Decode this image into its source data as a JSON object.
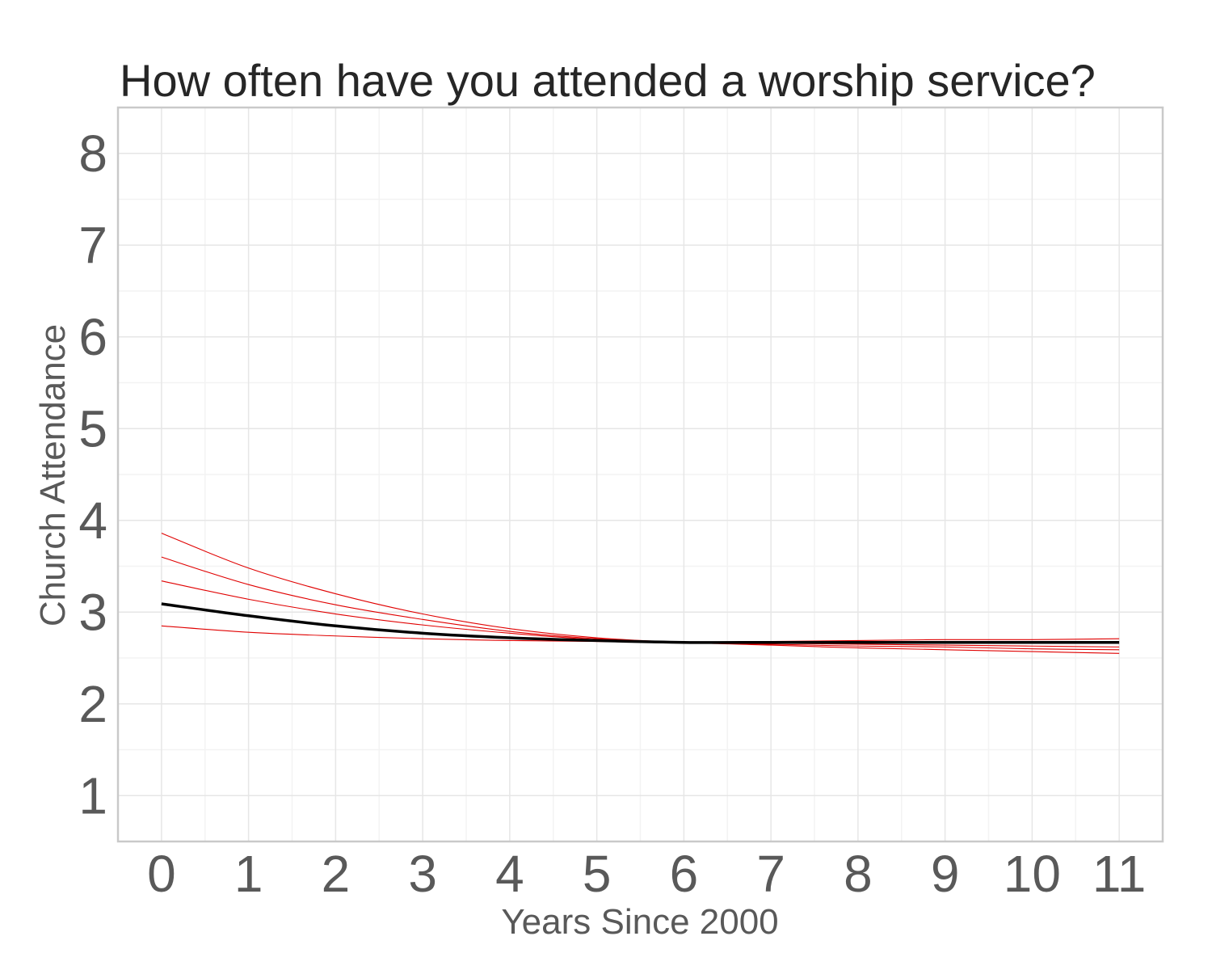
{
  "chart_data": {
    "type": "line",
    "title": "How often have you attended a worship service?",
    "xlabel": "Years Since 2000",
    "ylabel": "Church Attendance",
    "xlim": [
      -0.5,
      11.5
    ],
    "ylim": [
      0.5,
      8.5
    ],
    "xticks": [
      0,
      1,
      2,
      3,
      4,
      5,
      6,
      7,
      8,
      9,
      10,
      11
    ],
    "yticks": [
      1,
      2,
      3,
      4,
      5,
      6,
      7,
      8
    ],
    "grid": true,
    "legend": "none",
    "x": [
      0,
      1,
      2,
      3,
      4,
      5,
      6,
      7,
      8,
      9,
      10,
      11
    ],
    "series": [
      {
        "color": "#e00000",
        "style": "thin",
        "values": [
          3.86,
          3.48,
          3.2,
          2.98,
          2.82,
          2.72,
          2.67,
          2.64,
          2.61,
          2.59,
          2.57,
          2.55
        ]
      },
      {
        "color": "#e00000",
        "style": "thin",
        "values": [
          3.6,
          3.3,
          3.08,
          2.92,
          2.79,
          2.71,
          2.67,
          2.65,
          2.63,
          2.62,
          2.6,
          2.59
        ]
      },
      {
        "color": "#e00000",
        "style": "thin",
        "values": [
          3.34,
          3.14,
          2.98,
          2.86,
          2.77,
          2.7,
          2.67,
          2.66,
          2.65,
          2.64,
          2.63,
          2.62
        ]
      },
      {
        "color": "#e00000",
        "style": "thin",
        "values": [
          2.85,
          2.78,
          2.74,
          2.71,
          2.69,
          2.68,
          2.67,
          2.68,
          2.69,
          2.7,
          2.7,
          2.71
        ]
      },
      {
        "color": "#000000",
        "style": "thick",
        "values": [
          3.09,
          2.96,
          2.85,
          2.77,
          2.72,
          2.69,
          2.67,
          2.67,
          2.67,
          2.67,
          2.67,
          2.67
        ]
      }
    ]
  }
}
